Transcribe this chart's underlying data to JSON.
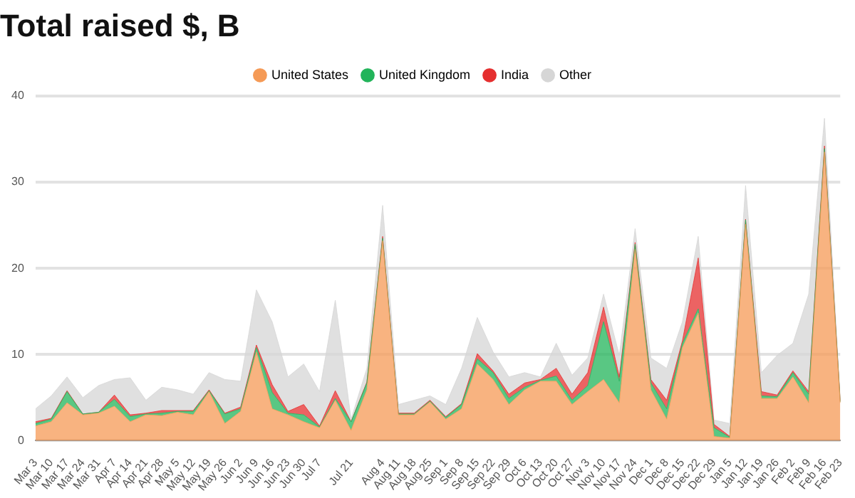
{
  "chart_data": {
    "type": "area",
    "title": "Total raised $, B",
    "stacked": true,
    "legend": "top",
    "grid": "y",
    "marker": "none",
    "ylim": [
      0,
      40
    ],
    "yticks": [
      0,
      10,
      20,
      30,
      40
    ],
    "categories": [
      "Mar 3",
      "Mar 10",
      "Mar 17",
      "Mar 24",
      "Mar 31",
      "Apr 7",
      "Apr 14",
      "Apr 21",
      "Apr 28",
      "May 5",
      "May 12",
      "May 19",
      "May 26",
      "Jun 2",
      "Jun 9",
      "Jun 16",
      "Jun 23",
      "Jun 30",
      "Jul 7",
      null,
      "Jul 21",
      null,
      "Aug 4",
      "Aug 11",
      "Aug 18",
      "Aug 25",
      "Sep 1",
      "Sep 8",
      "Sep 15",
      "Sep 22",
      "Sep 29",
      "Oct 6",
      "Oct 13",
      "Oct 20",
      "Oct 27",
      "Nov 3",
      "Nov 10",
      "Nov 17",
      "Nov 24",
      "Dec 1",
      "Dec 8",
      "Dec 15",
      "Dec 22",
      "Dec 29",
      "Jan 5",
      "Jan 12",
      "Jan 19",
      "Jan 26",
      "Feb 2",
      "Feb 9",
      "Feb 16",
      "Feb 23"
    ],
    "series": [
      {
        "name": "United States",
        "color": "#f59a56",
        "values": [
          1.7,
          2.2,
          4.4,
          3.0,
          3.2,
          4.0,
          2.2,
          3.0,
          2.9,
          3.3,
          3.0,
          5.7,
          2.0,
          3.4,
          10.3,
          3.7,
          3.0,
          2.2,
          1.5,
          4.7,
          1.2,
          5.9,
          23.2,
          3.0,
          3.0,
          4.5,
          2.5,
          3.7,
          8.9,
          7.1,
          4.2,
          5.9,
          6.9,
          6.9,
          4.2,
          5.7,
          7.1,
          4.4,
          22.2,
          5.9,
          2.5,
          10.8,
          14.8,
          0.5,
          0.3,
          25.1,
          4.9,
          4.9,
          7.4,
          4.4,
          33.5,
          4.4
        ]
      },
      {
        "name": "United Kingdom",
        "color": "#22b45a",
        "values": [
          0.3,
          0.3,
          1.3,
          0.1,
          0.1,
          0.8,
          0.6,
          0.1,
          0.3,
          0.1,
          0.4,
          0.1,
          1.1,
          0.3,
          0.5,
          1.9,
          0.2,
          0.8,
          0.1,
          0.2,
          1.0,
          0.8,
          0.3,
          0.1,
          0.1,
          0.1,
          0.2,
          0.5,
          0.6,
          0.8,
          0.7,
          0.3,
          0.1,
          0.6,
          0.5,
          0.7,
          6.7,
          2.5,
          0.6,
          0.8,
          1.2,
          0.5,
          0.5,
          1.0,
          0.1,
          0.5,
          0.3,
          0.2,
          0.5,
          1.0,
          0.4,
          0.1
        ]
      },
      {
        "name": "India",
        "color": "#e52f2f",
        "values": [
          0.2,
          0.1,
          0.1,
          0,
          0,
          0.5,
          0.2,
          0.1,
          0.3,
          0.1,
          0.1,
          0.1,
          0.1,
          0.2,
          0.3,
          0.9,
          0.2,
          1.2,
          0.1,
          0.9,
          0,
          0.1,
          0.2,
          0.1,
          0.1,
          0.1,
          0.1,
          0.1,
          0.6,
          0.2,
          0.5,
          0.5,
          0.1,
          0.9,
          0.7,
          1.5,
          1.7,
          0.5,
          0.2,
          0.4,
          1.0,
          0.3,
          5.9,
          0.4,
          0.1,
          0.1,
          0.5,
          0.2,
          0.2,
          0.3,
          0.3,
          0.1
        ]
      },
      {
        "name": "Other",
        "color": "#d6d6d6",
        "values": [
          1.5,
          2.6,
          1.6,
          1.9,
          3.1,
          1.8,
          4.3,
          1.5,
          2.7,
          2.4,
          1.9,
          2.0,
          3.9,
          3.0,
          6.4,
          7.3,
          4.0,
          4.7,
          4.0,
          10.5,
          0.3,
          1.6,
          3.6,
          1.0,
          1.5,
          0.5,
          1.4,
          4.1,
          4.2,
          2.2,
          2.0,
          1.2,
          0.3,
          2.9,
          2.2,
          1.7,
          1.5,
          2.5,
          1.6,
          2.5,
          3.7,
          2.2,
          2.5,
          0.5,
          1.5,
          3.9,
          2.2,
          4.6,
          3.2,
          11.3,
          3.2,
          0.2
        ]
      }
    ]
  }
}
